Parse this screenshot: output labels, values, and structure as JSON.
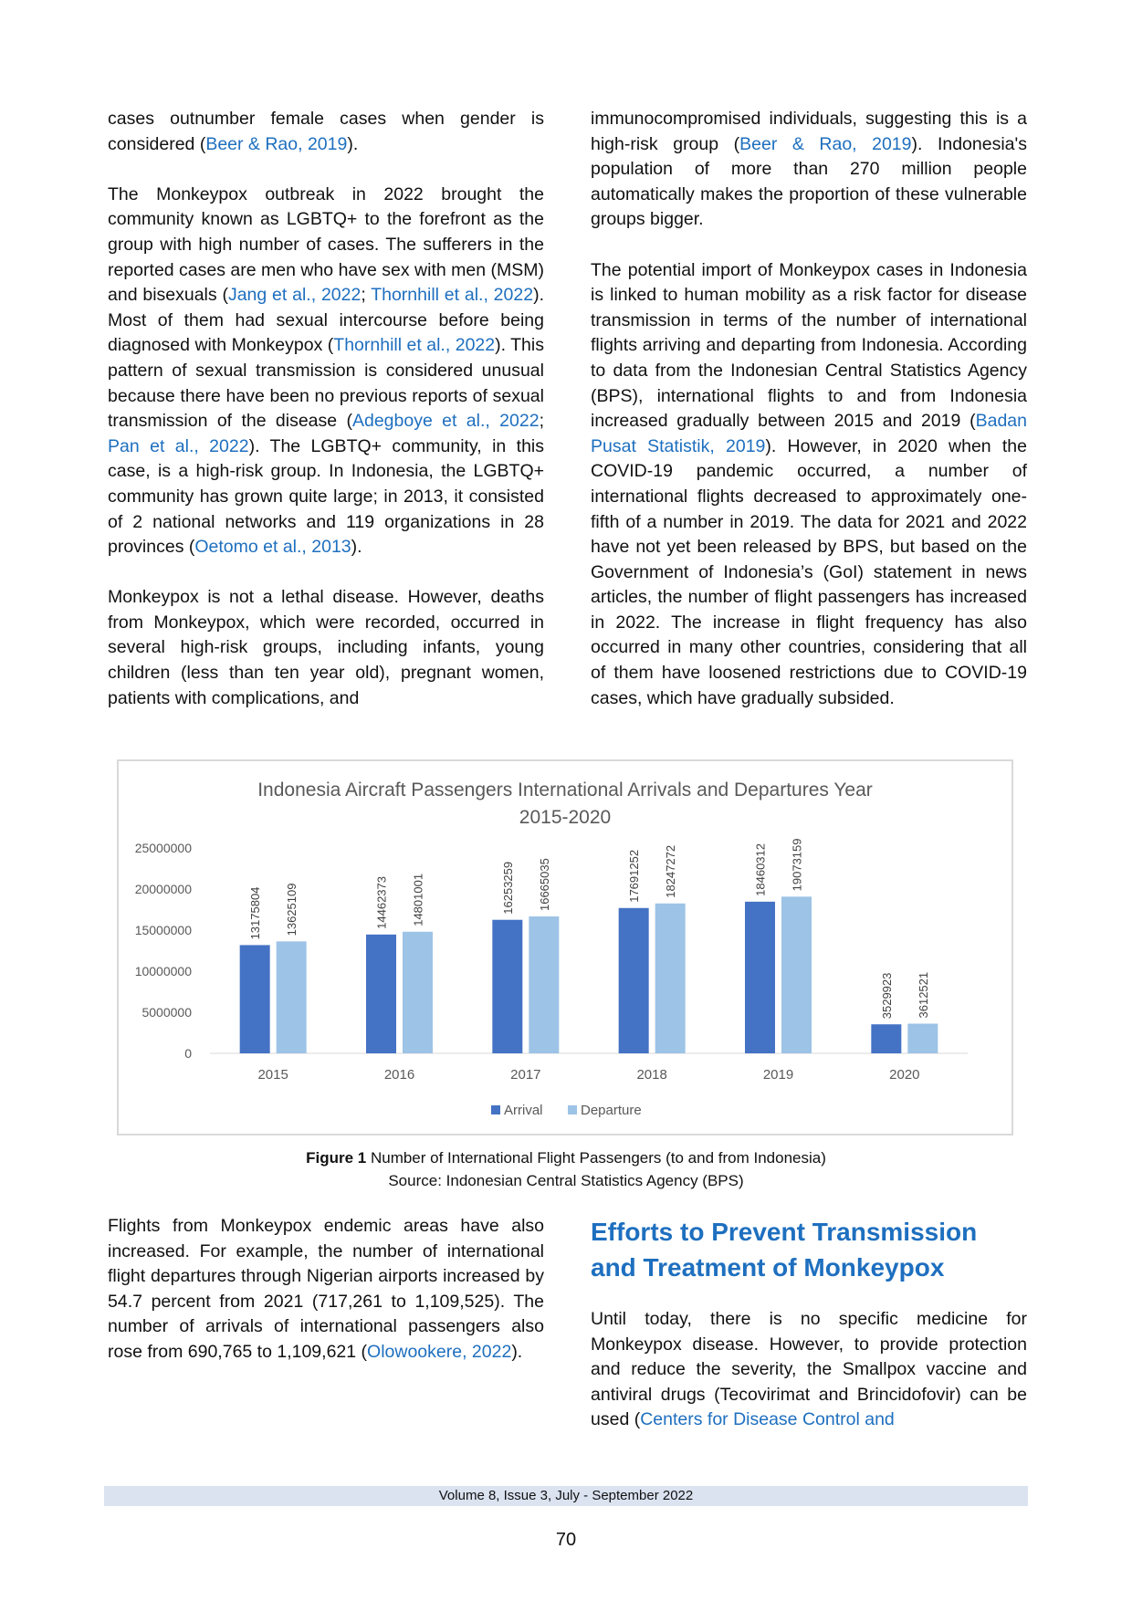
{
  "left_column_1": {
    "p1": [
      {
        "t": "cases outnumber female cases when gender is considered ("
      },
      {
        "t": "Beer & Rao, 2019",
        "c": 1
      },
      {
        "t": ")."
      }
    ],
    "p2": [
      {
        "t": "The Monkeypox outbreak in 2022 brought the community known as LGBTQ+ to the forefront as the group with high number of cases. The sufferers in the reported cases are men who have sex with men (MSM) and bisexuals ("
      },
      {
        "t": "Jang et al., 2022",
        "c": 1
      },
      {
        "t": "; "
      },
      {
        "t": "Thornhill et al., 2022",
        "c": 1
      },
      {
        "t": "). Most of them had sexual intercourse before being diagnosed with Monkeypox ("
      },
      {
        "t": "Thornhill et al., 2022",
        "c": 1
      },
      {
        "t": "). This pattern of sexual transmission is considered unusual because there have been no previous reports of sexual transmission of the disease ("
      },
      {
        "t": "Adegboye et al., 2022",
        "c": 1
      },
      {
        "t": "; "
      },
      {
        "t": "Pan et al., 2022",
        "c": 1
      },
      {
        "t": "). The LGBTQ+ community, in this case, is a high-risk group. In Indonesia, the LGBTQ+ community has grown quite large; in 2013, it consisted of 2 national networks and 119 organizations in 28 provinces ("
      },
      {
        "t": "Oetomo et al., 2013",
        "c": 1
      },
      {
        "t": ")."
      }
    ],
    "p3": [
      {
        "t": "Monkeypox is not a lethal disease. However, deaths from Monkeypox, which were recorded, occurred in several high-risk groups, including infants, young children (less than ten year old), pregnant women, patients with complications, and"
      }
    ]
  },
  "right_column_1": {
    "p1": [
      {
        "t": "immunocompromised individuals, suggesting this is a high-risk group ("
      },
      {
        "t": "Beer & Rao, 2019",
        "c": 1
      },
      {
        "t": "). Indonesia's population of more than 270 million people automatically makes the proportion of these vulnerable groups bigger."
      }
    ],
    "p2": [
      {
        "t": "The potential import of Monkeypox cases in Indonesia is linked to human mobility as a risk factor for disease transmission in terms of the number of international flights arriving and departing from Indonesia. According to data from the Indonesian Central Statistics Agency (BPS), international flights to and from Indonesia increased gradually between 2015 and 2019 ("
      },
      {
        "t": "Badan Pusat Statistik, 2019",
        "c": 1
      },
      {
        "t": "). However, in 2020 when the COVID-19 pandemic occurred, a number of international flights decreased to approximately one-fifth of a number in 2019. The data for 2021 and 2022 have not yet been released by BPS, but based on the Government of Indonesia’s (GoI) statement in news articles, the number of flight passengers has increased in 2022. The increase in flight frequency has also occurred in many other countries, considering that all of them have loosened restrictions due to COVID-19 cases, which have gradually subsided."
      }
    ]
  },
  "figure": {
    "caption_label": "Figure 1",
    "caption_text": " Number of International Flight Passengers (to and from Indonesia)",
    "source": "Source: Indonesian Central Statistics Agency (BPS)"
  },
  "chart_data": {
    "type": "bar",
    "title_line1": "Indonesia Aircraft Passengers International Arrivals and Departures Year",
    "title_line2": "2015-2020",
    "categories": [
      "2015",
      "2016",
      "2017",
      "2018",
      "2019",
      "2020"
    ],
    "series": [
      {
        "name": "Arrival",
        "color": "#4472c4",
        "values": [
          13175804,
          14462373,
          16253259,
          17691252,
          18460312,
          3529923
        ]
      },
      {
        "name": "Departure",
        "color": "#9dc3e6",
        "values": [
          13625109,
          14801001,
          16665035,
          18247272,
          19073159,
          3612521
        ]
      }
    ],
    "yticks": [
      "0",
      "5000000",
      "10000000",
      "15000000",
      "20000000",
      "25000000"
    ],
    "ylim": [
      0,
      25000000
    ],
    "legend_position": "bottom",
    "grid": false
  },
  "left_column_2": {
    "p1": [
      {
        "t": "Flights from Monkeypox endemic areas have also increased. For example, the number of international flight departures through Nigerian airports increased by 54.7 percent from 2021 (717,261 to 1,109,525). The number of arrivals of international passengers also rose from 690,765 to 1,109,621 ("
      },
      {
        "t": "Olowookere, 2022",
        "c": 1
      },
      {
        "t": ")."
      }
    ]
  },
  "right_column_2": {
    "heading": "Efforts to Prevent Transmission and Treatment of Monkeypox",
    "p1": [
      {
        "t": "Until today, there is no specific medicine for Monkeypox disease. However, to provide protection and reduce the severity, the Smallpox vaccine and antiviral drugs (Tecovirimat and Brincidofovir) can be used ("
      },
      {
        "t": "Centers for Disease Control and",
        "c": 1
      }
    ]
  },
  "footer": {
    "journal": "Volume 8, Issue 3, July - September 2022",
    "page": "70"
  }
}
